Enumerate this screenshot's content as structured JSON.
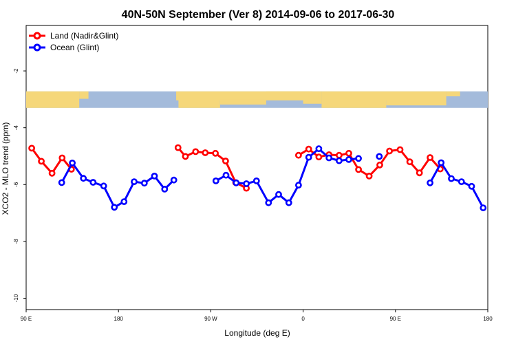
{
  "chart_data": {
    "type": "line",
    "title": "40N-50N September (Ver 8)   2014-09-06 to 2017-06-30",
    "xlabel": "Longitude (deg E)",
    "ylabel": "XCO2 - MLO trend (ppm)",
    "ylim": [
      -10.4,
      -0.4
    ],
    "y_ticks": [
      -2,
      -4,
      -6,
      -8,
      -10
    ],
    "x_ticks": [
      "90 E",
      "180",
      "90 W",
      "0",
      "90 E",
      "180"
    ],
    "x_range": [
      0,
      1
    ],
    "legend_position": "top-left",
    "colors": {
      "land": "#ff0000",
      "ocean": "#0000ff",
      "map_land": "#f5d77a",
      "map_ocean": "#a4bbdb"
    },
    "series": [
      {
        "name": "Land (Nadir&Glint)",
        "color": "#ff0000",
        "segments": [
          [
            [
              0.012,
              -4.72
            ],
            [
              0.033,
              -5.18
            ],
            [
              0.056,
              -5.6
            ],
            [
              0.078,
              -5.06
            ],
            [
              0.098,
              -5.46
            ]
          ],
          [
            [
              0.329,
              -4.7
            ],
            [
              0.345,
              -5.01
            ],
            [
              0.367,
              -4.84
            ],
            [
              0.388,
              -4.88
            ],
            [
              0.41,
              -4.9
            ],
            [
              0.432,
              -5.17
            ],
            [
              0.454,
              -5.93
            ],
            [
              0.477,
              -6.13
            ]
          ],
          [
            [
              0.59,
              -4.97
            ],
            [
              0.612,
              -4.75
            ],
            [
              0.634,
              -5.03
            ],
            [
              0.656,
              -4.95
            ],
            [
              0.678,
              -4.97
            ],
            [
              0.699,
              -4.9
            ],
            [
              0.72,
              -5.47
            ],
            [
              0.743,
              -5.7
            ],
            [
              0.766,
              -5.31
            ],
            [
              0.787,
              -4.82
            ],
            [
              0.81,
              -4.77
            ],
            [
              0.831,
              -5.2
            ],
            [
              0.852,
              -5.59
            ],
            [
              0.875,
              -5.05
            ],
            [
              0.897,
              -5.45
            ]
          ]
        ]
      },
      {
        "name": "Ocean (Glint)",
        "color": "#0000ff",
        "segments": [
          [
            [
              0.077,
              -5.93
            ],
            [
              0.1,
              -5.24
            ],
            [
              0.124,
              -5.78
            ],
            [
              0.145,
              -5.92
            ],
            [
              0.168,
              -6.05
            ],
            [
              0.191,
              -6.8
            ],
            [
              0.212,
              -6.6
            ],
            [
              0.234,
              -5.9
            ],
            [
              0.256,
              -5.95
            ],
            [
              0.278,
              -5.7
            ],
            [
              0.3,
              -6.16
            ],
            [
              0.32,
              -5.84
            ]
          ],
          [
            [
              0.411,
              -5.87
            ],
            [
              0.433,
              -5.67
            ],
            [
              0.455,
              -5.94
            ],
            [
              0.477,
              -5.97
            ],
            [
              0.499,
              -5.87
            ],
            [
              0.525,
              -6.64
            ],
            [
              0.547,
              -6.35
            ],
            [
              0.569,
              -6.64
            ],
            [
              0.59,
              -6.02
            ],
            [
              0.612,
              -5.04
            ],
            [
              0.634,
              -4.74
            ],
            [
              0.656,
              -5.06
            ],
            [
              0.678,
              -5.16
            ],
            [
              0.699,
              -5.12
            ],
            [
              0.72,
              -5.08
            ]
          ],
          [
            [
              0.765,
              -5.01
            ]
          ],
          [
            [
              0.875,
              -5.94
            ],
            [
              0.899,
              -5.23
            ],
            [
              0.921,
              -5.79
            ],
            [
              0.943,
              -5.9
            ],
            [
              0.965,
              -6.06
            ],
            [
              0.99,
              -6.82
            ]
          ]
        ]
      }
    ]
  },
  "map_strip": {
    "y_top": -2.72,
    "y_bottom": -3.3
  }
}
